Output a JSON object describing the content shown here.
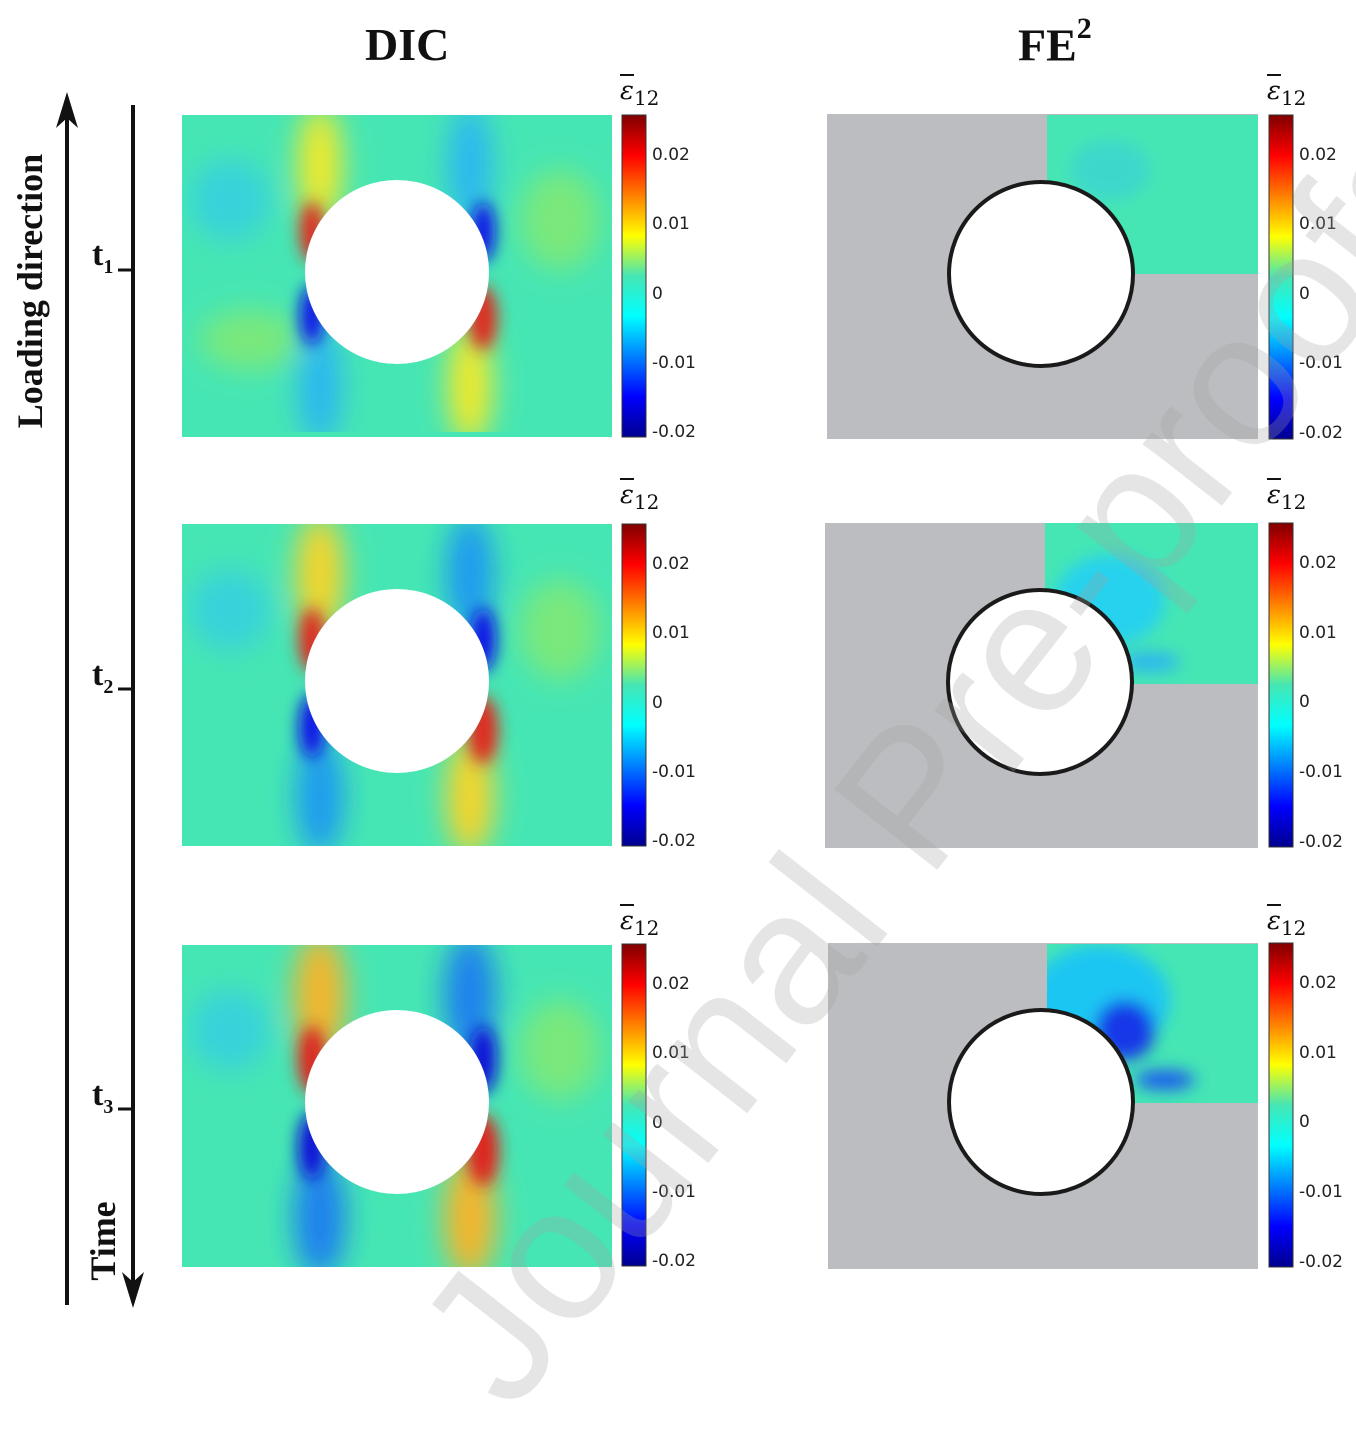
{
  "columns": {
    "dic_title": "DIC",
    "fe_title": "FE",
    "fe_sup": "2"
  },
  "axis": {
    "loading_direction": "Loading direction",
    "time": "Time"
  },
  "time_steps": [
    {
      "label": "t",
      "sub": "1"
    },
    {
      "label": "t",
      "sub": "2"
    },
    {
      "label": "t",
      "sub": "3"
    }
  ],
  "colorbar": {
    "symbol": "ε",
    "subscript": "12",
    "ticks": [
      "0.02",
      "0.01",
      "0",
      "-0.01",
      "-0.02"
    ],
    "range": [
      -0.025,
      0.025
    ],
    "colormap": "jet"
  },
  "watermark": "Journal Pre-proofs",
  "colors": {
    "gray_region": "#bcbdc0",
    "field_neutral": "#46e6b4"
  }
}
